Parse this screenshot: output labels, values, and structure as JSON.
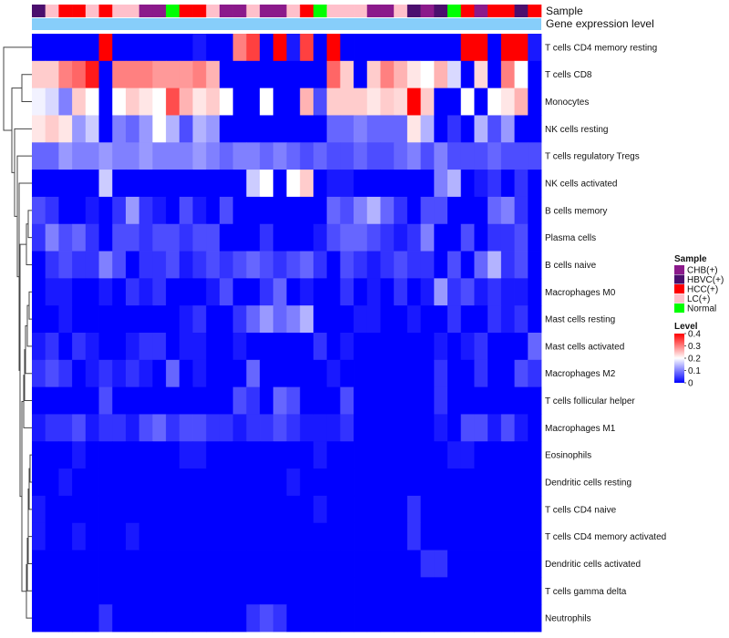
{
  "chart_data": {
    "type": "heatmap",
    "annotation_labels": [
      "Sample",
      "Gene expression level"
    ],
    "sample_groups": [
      "CHB(+)",
      "HBVC(+)",
      "HCC(+)",
      "LC(+)",
      "Normal"
    ],
    "group_colors": {
      "CHB(+)": "#8B1A8B",
      "HBVC(+)": "#4B0F6E",
      "HCC(+)": "#FF0000",
      "LC(+)": "#FFC0CB",
      "Normal": "#00FF00"
    },
    "gene_expression_bar_color": "#87CEFA",
    "columns": [
      "HBVC(+)",
      "LC(+)",
      "HCC(+)",
      "HCC(+)",
      "LC(+)",
      "HCC(+)",
      "LC(+)",
      "LC(+)",
      "CHB(+)",
      "CHB(+)",
      "Normal",
      "HCC(+)",
      "HCC(+)",
      "LC(+)",
      "CHB(+)",
      "CHB(+)",
      "LC(+)",
      "CHB(+)",
      "CHB(+)",
      "LC(+)",
      "HCC(+)",
      "Normal",
      "LC(+)",
      "LC(+)",
      "LC(+)",
      "CHB(+)",
      "CHB(+)",
      "LC(+)",
      "HBVC(+)",
      "CHB(+)",
      "HBVC(+)",
      "Normal",
      "HCC(+)",
      "CHB(+)",
      "HCC(+)",
      "HCC(+)",
      "HBVC(+)",
      "HCC(+)"
    ],
    "rows": [
      "T cells CD4 memory resting",
      "T cells CD8",
      "Monocytes",
      "NK cells resting",
      "T cells regulatory  Tregs",
      "NK cells activated",
      "B cells memory",
      "Plasma cells",
      "B cells naive",
      "Macrophages M0",
      "Mast cells resting",
      "Mast cells activated",
      "Macrophages M2",
      "T cells follicular helper",
      "Macrophages M1",
      "Eosinophils",
      "Dendritic cells resting",
      "T cells CD4 naive",
      "T cells CD4 memory activated",
      "Dendritic cells activated",
      "T cells gamma delta",
      "Neutrophils"
    ],
    "values": [
      [
        0,
        0,
        0,
        0,
        0,
        0.4,
        0,
        0,
        0,
        0,
        0,
        0,
        0.02,
        0,
        0,
        0.3,
        0.35,
        0,
        0.4,
        0.02,
        0.35,
        0,
        0.4,
        0,
        0,
        0,
        0,
        0,
        0,
        0,
        0,
        0,
        0.4,
        0.4,
        0,
        0.4,
        0.4,
        0.02
      ],
      [
        0.24,
        0.24,
        0.3,
        0.32,
        0.38,
        0,
        0.3,
        0.3,
        0.3,
        0.28,
        0.28,
        0.28,
        0.3,
        0.26,
        0,
        0,
        0,
        0,
        0,
        0,
        0,
        0,
        0.32,
        0.24,
        0,
        0.24,
        0.3,
        0.26,
        0.22,
        0.2,
        0.26,
        0.17,
        0,
        0.23,
        0,
        0.3,
        0.2,
        0
      ],
      [
        0.19,
        0.17,
        0.1,
        0.24,
        0.2,
        0,
        0.2,
        0.24,
        0.22,
        0.2,
        0.34,
        0.26,
        0.22,
        0.24,
        0.2,
        0,
        0,
        0.2,
        0,
        0,
        0.26,
        0.06,
        0.24,
        0.24,
        0.24,
        0.22,
        0.24,
        0.23,
        0.4,
        0.24,
        0,
        0,
        0.2,
        0,
        0.2,
        0.22,
        0.26,
        0
      ],
      [
        0.22,
        0.24,
        0.22,
        0.12,
        0.16,
        0,
        0.1,
        0.08,
        0.12,
        0.2,
        0.14,
        0.06,
        0.14,
        0.12,
        0,
        0,
        0,
        0,
        0,
        0,
        0,
        0,
        0.08,
        0.08,
        0.1,
        0.08,
        0.08,
        0.08,
        0.22,
        0.14,
        0,
        0.04,
        0,
        0.14,
        0.06,
        0.12,
        0,
        0
      ],
      [
        0.08,
        0.08,
        0.12,
        0.1,
        0.1,
        0.12,
        0.1,
        0.1,
        0.12,
        0.1,
        0.1,
        0.1,
        0.12,
        0.1,
        0.08,
        0.1,
        0.1,
        0.08,
        0.1,
        0.08,
        0.06,
        0.08,
        0.06,
        0.06,
        0.08,
        0.06,
        0.06,
        0.08,
        0.1,
        0.06,
        0.1,
        0.06,
        0.06,
        0.06,
        0.08,
        0.06,
        0.06,
        0.06
      ],
      [
        0,
        0,
        0,
        0,
        0,
        0.16,
        0,
        0,
        0,
        0,
        0,
        0,
        0,
        0,
        0,
        0,
        0.16,
        0.2,
        0,
        0.2,
        0.24,
        0,
        0.02,
        0.02,
        0,
        0,
        0,
        0,
        0,
        0,
        0.1,
        0.14,
        0,
        0.02,
        0.04,
        0,
        0.04,
        0
      ],
      [
        0.06,
        0.04,
        0,
        0,
        0.02,
        0,
        0.04,
        0.12,
        0.04,
        0.02,
        0,
        0.06,
        0.02,
        0,
        0.06,
        0,
        0,
        0,
        0,
        0,
        0,
        0,
        0.08,
        0.06,
        0.1,
        0.14,
        0.08,
        0.04,
        0,
        0.06,
        0.06,
        0,
        0,
        0,
        0.08,
        0.1,
        0.04,
        0
      ],
      [
        0.04,
        0.1,
        0.06,
        0.08,
        0.04,
        0,
        0.06,
        0.06,
        0.04,
        0.06,
        0.06,
        0.04,
        0.06,
        0.06,
        0,
        0,
        0,
        0.04,
        0,
        0,
        0,
        0.02,
        0.06,
        0.08,
        0.08,
        0.06,
        0.04,
        0.02,
        0.04,
        0.1,
        0,
        0,
        0.06,
        0,
        0.04,
        0.04,
        0.06,
        0
      ],
      [
        0,
        0.04,
        0.06,
        0.04,
        0.04,
        0.1,
        0.06,
        0,
        0.04,
        0.04,
        0.06,
        0.02,
        0.04,
        0.06,
        0.04,
        0.06,
        0.08,
        0.06,
        0.04,
        0.06,
        0.08,
        0.04,
        0,
        0.06,
        0.04,
        0.02,
        0.04,
        0.06,
        0.04,
        0.04,
        0,
        0.06,
        0,
        0.08,
        0.14,
        0.04,
        0.06,
        0
      ],
      [
        0,
        0.02,
        0.02,
        0,
        0,
        0.02,
        0,
        0.04,
        0.02,
        0.04,
        0,
        0,
        0,
        0.02,
        0.06,
        0,
        0,
        0.04,
        0.08,
        0,
        0.02,
        0,
        0,
        0.04,
        0,
        0.02,
        0,
        0.04,
        0,
        0.02,
        0.12,
        0.04,
        0.06,
        0.02,
        0.04,
        0.02,
        0.02,
        0
      ],
      [
        0,
        0,
        0.02,
        0,
        0,
        0,
        0,
        0,
        0,
        0,
        0,
        0.02,
        0.04,
        0,
        0,
        0.04,
        0.08,
        0.12,
        0.08,
        0.1,
        0.14,
        0,
        0,
        0,
        0.02,
        0.02,
        0,
        0,
        0.02,
        0,
        0,
        0.04,
        0,
        0,
        0.04,
        0.02,
        0.04,
        0
      ],
      [
        0.02,
        0.04,
        0,
        0.04,
        0.02,
        0,
        0,
        0.02,
        0.04,
        0.04,
        0,
        0.02,
        0.02,
        0,
        0,
        0.02,
        0,
        0,
        0,
        0,
        0,
        0.04,
        0,
        0.02,
        0,
        0,
        0,
        0,
        0,
        0,
        0.02,
        0,
        0.02,
        0.04,
        0,
        0,
        0,
        0.08
      ],
      [
        0.04,
        0.06,
        0.04,
        0,
        0.02,
        0.04,
        0.02,
        0.04,
        0.02,
        0,
        0.08,
        0,
        0.02,
        0,
        0,
        0,
        0.08,
        0,
        0,
        0,
        0,
        0,
        0.02,
        0,
        0,
        0,
        0,
        0,
        0,
        0,
        0.04,
        0,
        0,
        0.04,
        0,
        0,
        0.06,
        0.04
      ],
      [
        0,
        0,
        0,
        0,
        0,
        0.06,
        0,
        0,
        0,
        0,
        0,
        0,
        0,
        0,
        0,
        0.06,
        0.04,
        0,
        0.08,
        0.06,
        0,
        0,
        0,
        0.06,
        0,
        0,
        0,
        0,
        0,
        0,
        0.04,
        0,
        0,
        0,
        0,
        0,
        0,
        0
      ],
      [
        0.02,
        0.04,
        0.04,
        0.06,
        0.02,
        0.04,
        0.04,
        0.02,
        0.06,
        0.08,
        0.04,
        0.06,
        0.06,
        0.04,
        0.04,
        0.02,
        0.04,
        0.04,
        0.06,
        0.04,
        0.02,
        0.02,
        0.02,
        0.04,
        0,
        0,
        0,
        0,
        0,
        0,
        0.02,
        0,
        0.06,
        0.06,
        0.02,
        0.06,
        0.02,
        0
      ],
      [
        0,
        0,
        0,
        0.02,
        0,
        0,
        0,
        0,
        0,
        0,
        0,
        0.02,
        0.02,
        0,
        0,
        0,
        0,
        0,
        0,
        0,
        0,
        0.02,
        0,
        0,
        0,
        0,
        0,
        0,
        0,
        0,
        0,
        0.02,
        0.02,
        0,
        0,
        0,
        0,
        0
      ],
      [
        0,
        0,
        0.02,
        0,
        0,
        0,
        0,
        0,
        0,
        0,
        0,
        0,
        0,
        0,
        0,
        0,
        0,
        0,
        0,
        0.02,
        0,
        0,
        0,
        0,
        0,
        0,
        0,
        0,
        0,
        0,
        0,
        0,
        0,
        0,
        0,
        0,
        0,
        0
      ],
      [
        0.02,
        0,
        0,
        0,
        0,
        0,
        0,
        0,
        0,
        0,
        0,
        0,
        0,
        0,
        0,
        0,
        0,
        0,
        0,
        0,
        0,
        0.02,
        0,
        0,
        0,
        0,
        0,
        0,
        0.04,
        0,
        0,
        0,
        0,
        0,
        0,
        0,
        0,
        0
      ],
      [
        0.02,
        0,
        0,
        0.02,
        0,
        0,
        0,
        0.02,
        0,
        0,
        0,
        0,
        0,
        0,
        0,
        0,
        0,
        0,
        0,
        0,
        0,
        0,
        0,
        0,
        0,
        0,
        0,
        0,
        0.04,
        0,
        0,
        0,
        0,
        0,
        0,
        0,
        0,
        0
      ],
      [
        0,
        0,
        0,
        0,
        0,
        0,
        0,
        0,
        0,
        0,
        0,
        0,
        0,
        0,
        0,
        0,
        0,
        0,
        0,
        0,
        0,
        0,
        0,
        0,
        0,
        0,
        0,
        0,
        0,
        0.04,
        0.04,
        0,
        0,
        0,
        0,
        0,
        0,
        0
      ],
      [
        0,
        0,
        0,
        0,
        0,
        0,
        0,
        0,
        0,
        0,
        0,
        0,
        0,
        0,
        0,
        0,
        0,
        0,
        0,
        0,
        0,
        0,
        0,
        0,
        0,
        0,
        0,
        0,
        0,
        0,
        0,
        0,
        0,
        0,
        0,
        0,
        0,
        0
      ],
      [
        0,
        0,
        0,
        0,
        0,
        0.04,
        0,
        0,
        0,
        0,
        0,
        0,
        0,
        0,
        0,
        0,
        0.04,
        0.06,
        0.04,
        0,
        0,
        0,
        0,
        0,
        0,
        0,
        0,
        0,
        0,
        0,
        0,
        0,
        0,
        0,
        0,
        0,
        0,
        0
      ]
    ],
    "legend": {
      "sample_title": "Sample",
      "level_title": "Level",
      "level_ticks": [
        "0.4",
        "0.3",
        "0.2",
        "0.1",
        "0"
      ],
      "level_range": [
        0,
        0.4
      ],
      "placement": "right"
    }
  }
}
